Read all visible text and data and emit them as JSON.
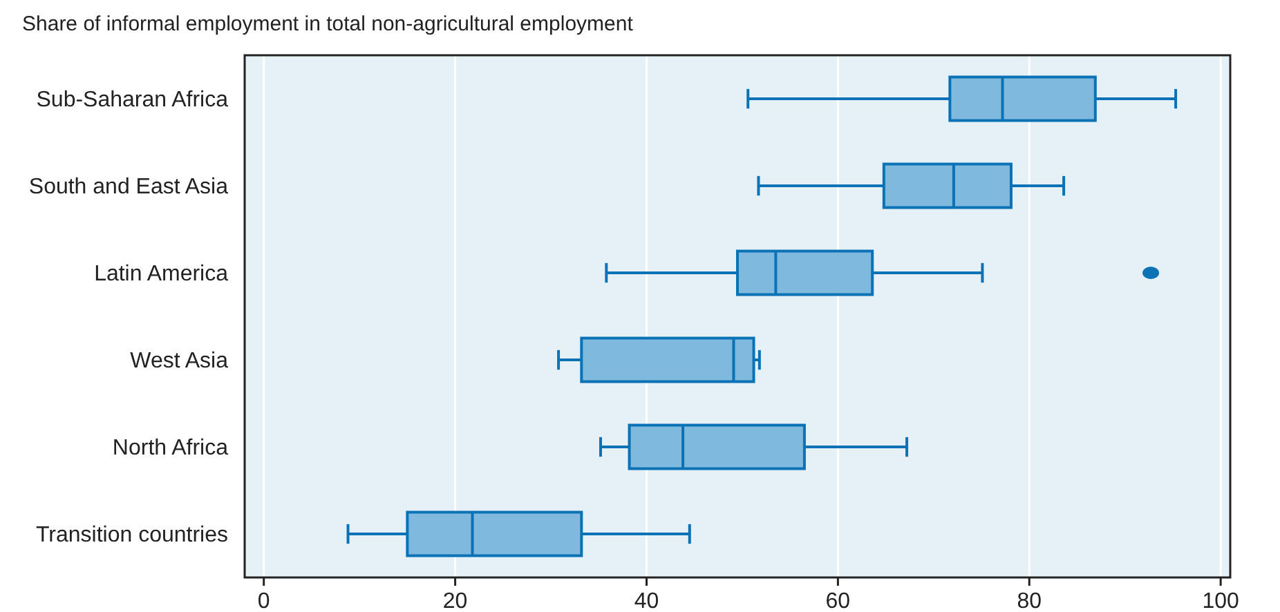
{
  "chart_data": {
    "type": "box",
    "orientation": "horizontal",
    "title": "Share of informal employment in total non-agricultural employment",
    "categories": [
      "Sub-Saharan Africa",
      "South and East Asia",
      "Latin America",
      "West Asia",
      "North Africa",
      "Transition countries"
    ],
    "boxes": [
      {
        "low": 50.6,
        "q1": 71.7,
        "median": 77.2,
        "q3": 86.9,
        "high": 95.3
      },
      {
        "low": 51.7,
        "q1": 64.8,
        "median": 72.1,
        "q3": 78.1,
        "high": 83.6
      },
      {
        "low": 35.8,
        "q1": 49.5,
        "median": 53.5,
        "q3": 63.6,
        "high": 75.1,
        "outliers": [
          92.7
        ]
      },
      {
        "low": 30.8,
        "q1": 33.2,
        "median": 49.1,
        "q3": 51.2,
        "high": 51.8
      },
      {
        "low": 35.2,
        "q1": 38.2,
        "median": 43.8,
        "q3": 56.5,
        "high": 67.2
      },
      {
        "low": 8.8,
        "q1": 15.0,
        "median": 21.8,
        "q3": 33.2,
        "high": 44.5
      }
    ],
    "color": "#7fb9de",
    "xlim": [
      -2,
      101
    ],
    "xticks": [
      0,
      20,
      40,
      60,
      80,
      100
    ],
    "grid": "x"
  }
}
